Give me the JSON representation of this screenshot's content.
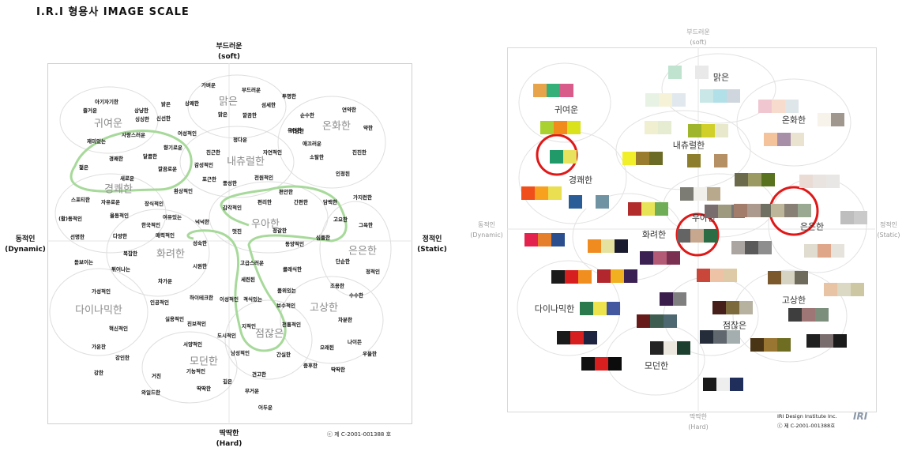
{
  "page_title": "I.R.I 형용사 IMAGE SCALE",
  "left_scale": {
    "axis": {
      "top": "부드러운",
      "top_en": "(soft)",
      "bottom": "딱딱한",
      "bottom_en": "(Hard)",
      "left": "동적인",
      "left_en": "(Dynamic)",
      "right": "정적인",
      "right_en": "(Static)"
    },
    "copyright": "ⓒ 제 C-2001-001388 호",
    "groups": [
      "맑은",
      "귀여운",
      "온화한",
      "내츄럴한",
      "경쾌한",
      "우아한",
      "화려한",
      "은은한",
      "다이나믹한",
      "고상한",
      "점잖은",
      "모던한"
    ],
    "words": [
      "가벼운",
      "부드러운",
      "투명한",
      "아기자기한",
      "상냥한",
      "밝은",
      "상쾌한",
      "섬세한",
      "즐거운",
      "싱싱한",
      "맑은",
      "깔끔한",
      "순수한",
      "연약한",
      "약한",
      "신선한",
      "여성적인",
      "아담한",
      "유연한",
      "재미있는",
      "사랑스러운",
      "정다운",
      "자연적인",
      "애끄러운",
      "진진한",
      "향기로운",
      "친근한",
      "소탈한",
      "달콤한",
      "젊은",
      "경쾌한",
      "감성적인",
      "새로운",
      "깔끔로운",
      "포근한",
      "인정된",
      "풍성한",
      "전원적인",
      "환상적인",
      "가지런한",
      "스포티한",
      "편안한",
      "자유로운",
      "장식적인",
      "간편한",
      "담백한",
      "편리한",
      "감각적인",
      "(활)동적인",
      "율동적인",
      "여유있는",
      "고요한",
      "한국적인",
      "넉넉한",
      "그윽한",
      "선명한",
      "다양한",
      "매력적인",
      "정갈한",
      "심플한",
      "멋진",
      "동양적인",
      "돋보이는",
      "복잡한",
      "성숙한",
      "단순한",
      "튀어나는",
      "시원한",
      "고급스러운",
      "정적인",
      "클래식한",
      "가성적인",
      "세련된",
      "차가운",
      "조용한",
      "품위있는",
      "수수한",
      "하이테크한",
      "보수적인",
      "인공적인",
      "이성적인",
      "격식있는",
      "차분한",
      "실용적인",
      "진보적인",
      "지적인",
      "전통적인",
      "혁신적인",
      "도시적인",
      "나이든",
      "서양적인",
      "가운찬",
      "오래된",
      "우울한",
      "남성적인",
      "강인한",
      "간실한",
      "기능적인",
      "중후한",
      "강한",
      "거친",
      "견고한",
      "딱딱한",
      "와일드한",
      "딱딱한",
      "깊은",
      "무거운",
      "어두운"
    ]
  },
  "right_scale": {
    "axis": {
      "top": "부드러운",
      "top_en": "(soft)",
      "bottom": "딱딱한",
      "bottom_en": "(Hard)",
      "left": "동적인",
      "left_en": "(Dynamic)",
      "right": "정적인",
      "right_en": "(Static)"
    },
    "credit": "IRI Design Institute Inc.",
    "copyright": "ⓒ 제 C-2001-001388호",
    "logo": "IRI",
    "groups": [
      "맑은",
      "귀여운",
      "온화한",
      "내츄럴한",
      "경쾌한",
      "우아한",
      "화려한",
      "은은한",
      "다이나믹한",
      "고상한",
      "점잖은",
      "모던한"
    ],
    "colors": {
      "circle": "#e01818",
      "curve": "#a7d99a"
    }
  }
}
